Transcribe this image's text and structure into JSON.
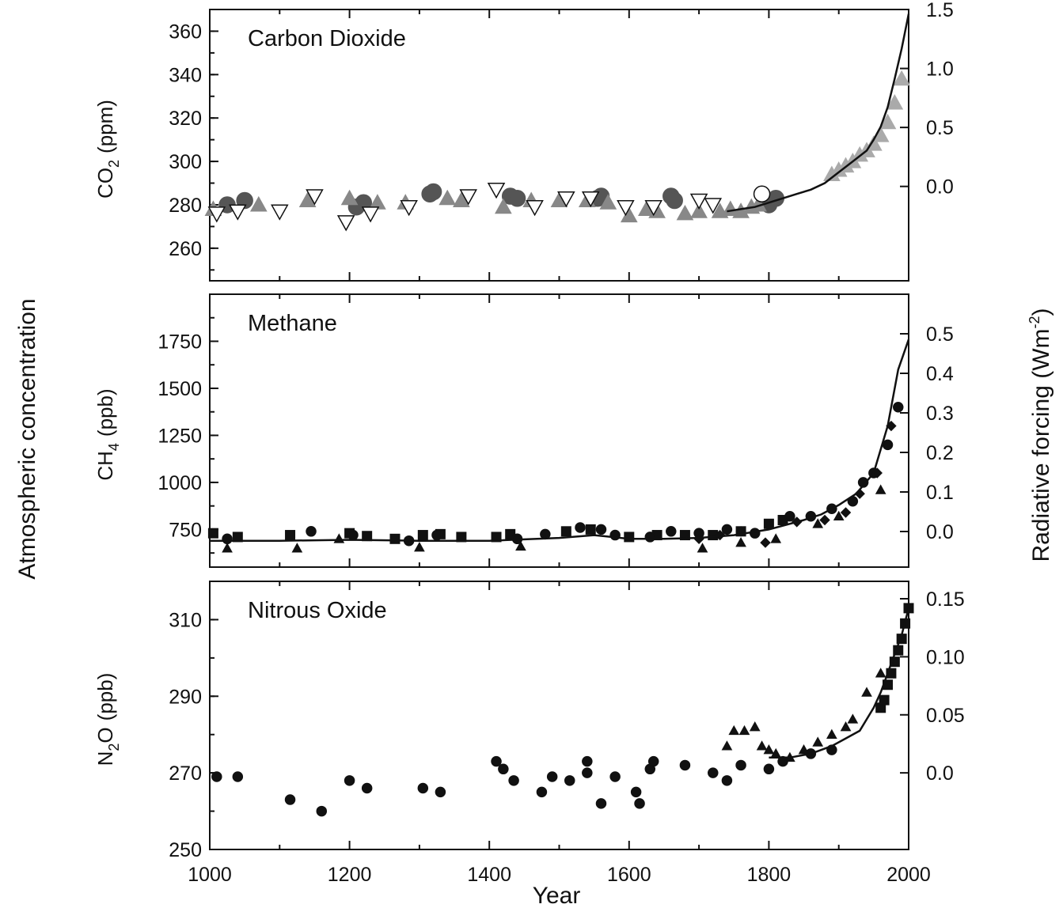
{
  "figure": {
    "left_axis_title": "Atmospheric concentration",
    "right_axis_title": "Radiative forcing  (Wm",
    "right_axis_title_sup": "-2",
    "right_axis_title_close": ")",
    "xlabel": "Year"
  },
  "colors": {
    "black": "#111111",
    "dark_gray": "#555555",
    "mid_gray": "#888888",
    "light_gray": "#aaaaaa",
    "white": "#ffffff"
  },
  "chart_data": [
    {
      "type": "scatter",
      "title": "Carbon Dioxide",
      "ylabel_main": "CO",
      "ylabel_sub": "2",
      "ylabel_unit": "(ppm)",
      "xlim": [
        1000,
        2000
      ],
      "ylim": [
        245,
        370
      ],
      "yticks": [
        260,
        280,
        300,
        320,
        340,
        360
      ],
      "right_ylim": [
        -0.8,
        1.5
      ],
      "right_yticks": [
        "0.0",
        "0.5",
        "1.0",
        "1.5"
      ],
      "right_tick_values": [
        0.0,
        0.5,
        1.0,
        1.5
      ],
      "series": [
        {
          "marker": "circle",
          "fill": "dark_gray",
          "stroke": "dark_gray",
          "x": [
            1025,
            1050,
            1210,
            1220,
            1315,
            1320,
            1430,
            1440,
            1555,
            1560,
            1660,
            1665,
            1800,
            1810
          ],
          "y": [
            280,
            282,
            279,
            281,
            285,
            286,
            284,
            283,
            283,
            284,
            284,
            282,
            280,
            283
          ]
        },
        {
          "marker": "triangle-up",
          "fill": "mid_gray",
          "stroke": "mid_gray",
          "x": [
            1005,
            1070,
            1140,
            1200,
            1240,
            1280,
            1340,
            1360,
            1420,
            1460,
            1500,
            1540,
            1570,
            1600,
            1625,
            1640,
            1680,
            1700,
            1730,
            1745,
            1760,
            1775,
            1785
          ],
          "y": [
            278,
            280,
            282,
            283,
            281,
            281,
            283,
            282,
            279,
            282,
            282,
            282,
            281,
            275,
            278,
            277,
            276,
            277,
            277,
            278,
            277,
            279,
            280
          ]
        },
        {
          "marker": "triangle-down-open",
          "fill": "white",
          "stroke": "black",
          "x": [
            1010,
            1040,
            1100,
            1150,
            1195,
            1230,
            1285,
            1370,
            1410,
            1465,
            1510,
            1545,
            1595,
            1635,
            1700,
            1720
          ],
          "y": [
            276,
            277,
            277,
            284,
            272,
            276,
            279,
            284,
            287,
            279,
            283,
            283,
            279,
            279,
            282,
            280
          ]
        },
        {
          "marker": "circle-open",
          "fill": "white",
          "stroke": "black",
          "x": [
            1790
          ],
          "y": [
            285
          ]
        },
        {
          "marker": "triangle-up",
          "fill": "light_gray",
          "stroke": "light_gray",
          "x": [
            1890,
            1900,
            1910,
            1920,
            1930,
            1940,
            1950,
            1960,
            1970,
            1980,
            1990
          ],
          "y": [
            294,
            296,
            298,
            300,
            303,
            305,
            308,
            312,
            318,
            327,
            338
          ]
        },
        {
          "marker": "line",
          "stroke": "black",
          "x": [
            1740,
            1760,
            1780,
            1800,
            1820,
            1840,
            1860,
            1880,
            1900,
            1920,
            1940,
            1950,
            1960,
            1970,
            1980,
            1990,
            2000
          ],
          "y": [
            277,
            278,
            279,
            281,
            283,
            285,
            287,
            290,
            295,
            300,
            305,
            310,
            316,
            325,
            338,
            352,
            368
          ]
        }
      ]
    },
    {
      "type": "scatter",
      "title": "Methane",
      "ylabel_main": "CH",
      "ylabel_sub": "4",
      "ylabel_unit": "(ppb)",
      "xlim": [
        1000,
        2000
      ],
      "ylim": [
        550,
        2000
      ],
      "yticks": [
        750,
        1000,
        1250,
        1500,
        1750
      ],
      "right_ylim": [
        -0.09,
        0.6
      ],
      "right_yticks": [
        "0.0",
        "0.1",
        "0.2",
        "0.3",
        "0.4",
        "0.5"
      ],
      "right_tick_values": [
        0.0,
        0.1,
        0.2,
        0.3,
        0.4,
        0.5
      ],
      "series": [
        {
          "marker": "square",
          "fill": "black",
          "stroke": "black",
          "x": [
            1005,
            1040,
            1115,
            1200,
            1225,
            1265,
            1305,
            1330,
            1360,
            1410,
            1430,
            1510,
            1545,
            1600,
            1640,
            1680,
            1720,
            1760,
            1800,
            1820
          ],
          "y": [
            730,
            710,
            720,
            730,
            715,
            700,
            720,
            725,
            710,
            710,
            725,
            740,
            750,
            710,
            720,
            720,
            720,
            740,
            780,
            800
          ]
        },
        {
          "marker": "circle",
          "fill": "black",
          "stroke": "black",
          "x": [
            1025,
            1145,
            1205,
            1285,
            1325,
            1440,
            1480,
            1530,
            1560,
            1580,
            1630,
            1660,
            1700,
            1740,
            1780,
            1830,
            1860,
            1890,
            1920,
            1935,
            1950,
            1970,
            1985
          ],
          "y": [
            700,
            740,
            720,
            690,
            720,
            700,
            725,
            760,
            750,
            720,
            710,
            740,
            730,
            750,
            730,
            820,
            820,
            860,
            900,
            1000,
            1050,
            1200,
            1400
          ]
        },
        {
          "marker": "triangle-up",
          "fill": "black",
          "stroke": "black",
          "x": [
            1025,
            1125,
            1185,
            1300,
            1445,
            1705,
            1760,
            1810,
            1870,
            1900,
            1960
          ],
          "y": [
            650,
            650,
            700,
            655,
            660,
            650,
            680,
            700,
            780,
            820,
            960
          ]
        },
        {
          "marker": "diamond",
          "fill": "black",
          "stroke": "black",
          "x": [
            1700,
            1730,
            1760,
            1795,
            1840,
            1880,
            1910,
            1930,
            1955,
            1975
          ],
          "y": [
            700,
            720,
            740,
            680,
            790,
            800,
            840,
            940,
            1050,
            1300
          ]
        },
        {
          "marker": "line",
          "stroke": "black",
          "x": [
            1000,
            1100,
            1200,
            1300,
            1400,
            1500,
            1550,
            1600,
            1650,
            1700,
            1750,
            1800,
            1850,
            1875,
            1900,
            1925,
            1950,
            1970,
            1985,
            2000
          ],
          "y": [
            690,
            690,
            695,
            690,
            690,
            705,
            720,
            700,
            700,
            705,
            720,
            750,
            800,
            830,
            880,
            940,
            1050,
            1300,
            1600,
            1760
          ]
        }
      ]
    },
    {
      "type": "scatter",
      "title": "Nitrous Oxide",
      "ylabel_main": "N",
      "ylabel_sub": "2",
      "ylabel_main_suffix": "O",
      "ylabel_unit": "(ppb)",
      "xlim": [
        1000,
        2000
      ],
      "ylim": [
        250,
        320
      ],
      "yticks": [
        250,
        270,
        290,
        310
      ],
      "right_ylim": [
        -0.066,
        0.165
      ],
      "right_yticks": [
        "0.0",
        "0.05",
        "0.10",
        "0.15"
      ],
      "right_tick_values": [
        0.0,
        0.05,
        0.1,
        0.15
      ],
      "series": [
        {
          "marker": "circle",
          "fill": "black",
          "stroke": "black",
          "x": [
            1010,
            1040,
            1115,
            1160,
            1200,
            1225,
            1305,
            1330,
            1410,
            1420,
            1435,
            1475,
            1490,
            1515,
            1540,
            1540,
            1560,
            1580,
            1610,
            1615,
            1630,
            1635,
            1680,
            1720,
            1740,
            1760,
            1800,
            1820,
            1860,
            1890
          ],
          "y": [
            269,
            269,
            263,
            260,
            268,
            266,
            266,
            265,
            273,
            271,
            268,
            265,
            269,
            268,
            273,
            270,
            262,
            269,
            265,
            262,
            271,
            273,
            272,
            270,
            268,
            272,
            271,
            273,
            275,
            276
          ]
        },
        {
          "marker": "triangle-up",
          "fill": "black",
          "stroke": "black",
          "x": [
            1740,
            1750,
            1765,
            1780,
            1790,
            1800,
            1810,
            1830,
            1850,
            1870,
            1890,
            1910,
            1920,
            1940,
            1960
          ],
          "y": [
            277,
            281,
            281,
            282,
            277,
            276,
            275,
            274,
            276,
            278,
            280,
            282,
            284,
            291,
            296
          ]
        },
        {
          "marker": "square",
          "fill": "black",
          "stroke": "black",
          "x": [
            1960,
            1965,
            1970,
            1975,
            1980,
            1985,
            1990,
            1995,
            2000
          ],
          "y": [
            287,
            289,
            293,
            296,
            299,
            302,
            305,
            309,
            313
          ]
        },
        {
          "marker": "line",
          "stroke": "black",
          "x": [
            1800,
            1830,
            1860,
            1890,
            1910,
            1930,
            1950,
            1960,
            1970,
            1980,
            1990,
            2000
          ],
          "y": [
            274,
            274,
            275,
            277,
            279,
            281,
            287,
            291,
            296,
            301,
            306,
            313
          ]
        }
      ],
      "xticks": [
        1000,
        1200,
        1400,
        1600,
        1800,
        2000
      ]
    }
  ]
}
